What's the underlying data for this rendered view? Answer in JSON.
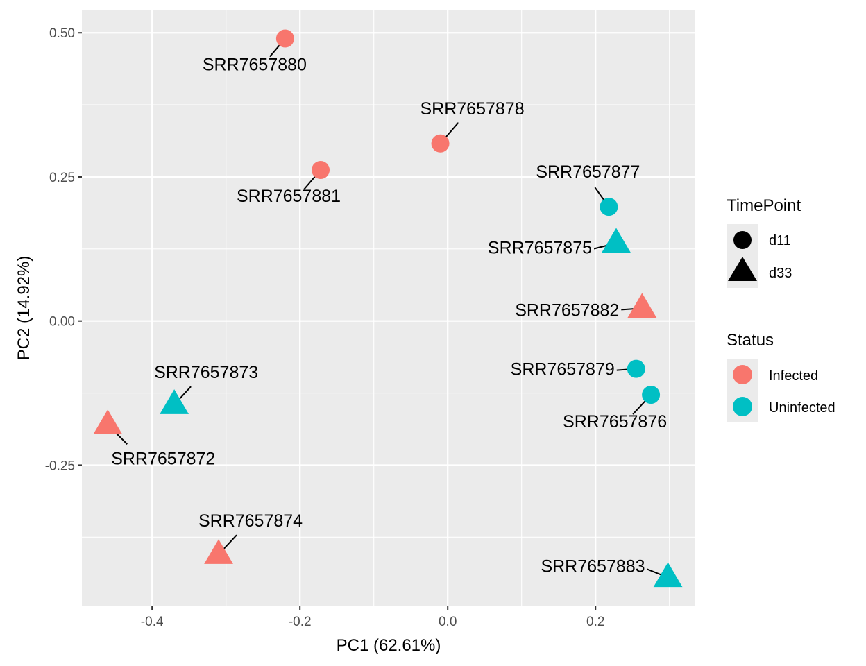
{
  "chart_data": {
    "type": "scatter",
    "xlabel": "PC1 (62.61%)",
    "ylabel": "PC2 (14.92%)",
    "xlim": [
      -0.495,
      0.335
    ],
    "ylim": [
      -0.495,
      0.54
    ],
    "x_ticks": [
      -0.4,
      -0.2,
      0.0,
      0.2
    ],
    "x_tick_labels": [
      "-0.4",
      "-0.2",
      "0.0",
      "0.2"
    ],
    "y_ticks": [
      -0.25,
      0.0,
      0.25,
      0.5
    ],
    "y_tick_labels": [
      "-0.25",
      "0.00",
      "0.25",
      "0.50"
    ],
    "grid": true,
    "points": [
      {
        "label": "SRR7657880",
        "x": -0.22,
        "y": 0.49,
        "timepoint": "d11",
        "status": "Infected"
      },
      {
        "label": "SRR7657878",
        "x": -0.01,
        "y": 0.308,
        "timepoint": "d11",
        "status": "Infected"
      },
      {
        "label": "SRR7657881",
        "x": -0.172,
        "y": 0.262,
        "timepoint": "d11",
        "status": "Infected"
      },
      {
        "label": "SRR7657877",
        "x": 0.218,
        "y": 0.198,
        "timepoint": "d11",
        "status": "Uninfected"
      },
      {
        "label": "SRR7657875",
        "x": 0.228,
        "y": 0.135,
        "timepoint": "d33",
        "status": "Uninfected"
      },
      {
        "label": "SRR7657882",
        "x": 0.263,
        "y": 0.022,
        "timepoint": "d33",
        "status": "Infected"
      },
      {
        "label": "SRR7657879",
        "x": 0.255,
        "y": -0.083,
        "timepoint": "d11",
        "status": "Uninfected"
      },
      {
        "label": "SRR7657876",
        "x": 0.275,
        "y": -0.128,
        "timepoint": "d11",
        "status": "Uninfected"
      },
      {
        "label": "SRR7657873",
        "x": -0.37,
        "y": -0.145,
        "timepoint": "d33",
        "status": "Uninfected"
      },
      {
        "label": "SRR7657872",
        "x": -0.46,
        "y": -0.18,
        "timepoint": "d33",
        "status": "Infected"
      },
      {
        "label": "SRR7657874",
        "x": -0.31,
        "y": -0.405,
        "timepoint": "d33",
        "status": "Infected"
      },
      {
        "label": "SRR7657883",
        "x": 0.298,
        "y": -0.445,
        "timepoint": "d33",
        "status": "Uninfected"
      }
    ],
    "legends": [
      {
        "title": "TimePoint",
        "entries": [
          {
            "label": "d11",
            "shape": "circle"
          },
          {
            "label": "d33",
            "shape": "triangle"
          }
        ]
      },
      {
        "title": "Status",
        "entries": [
          {
            "label": "Infected",
            "color": "#F8766D"
          },
          {
            "label": "Uninfected",
            "color": "#00BFC4"
          }
        ]
      }
    ],
    "legend_position": "right",
    "colors": {
      "Infected": "#F8766D",
      "Uninfected": "#00BFC4",
      "panel": "#EBEBEB",
      "grid": "#FFFFFF"
    }
  }
}
